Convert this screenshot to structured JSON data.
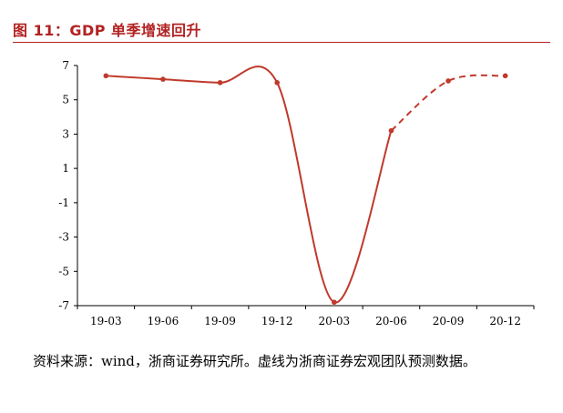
{
  "header": {
    "title": "图 11：GDP 单季增速回升"
  },
  "chart_data": {
    "type": "line",
    "title": "",
    "xlabel": "",
    "ylabel": "",
    "categories": [
      "19-03",
      "19-06",
      "19-09",
      "19-12",
      "20-03",
      "20-06",
      "20-09",
      "20-12"
    ],
    "ylim": [
      -7,
      7
    ],
    "yticks": [
      7,
      5,
      3,
      1,
      -1,
      -3,
      -5,
      -7
    ],
    "series": [
      {
        "actual_values": [
          6.4,
          6.2,
          6.0,
          6.0,
          -6.8,
          3.2,
          null,
          null
        ],
        "forecast_values": [
          null,
          null,
          null,
          null,
          null,
          3.2,
          6.1,
          6.4
        ],
        "color": "#c0392b"
      }
    ],
    "grid": false,
    "legend": "none"
  },
  "footer": {
    "source_note": "资料来源：wind，浙商证券研究所。虚线为浙商证券宏观团队预测数据。"
  }
}
